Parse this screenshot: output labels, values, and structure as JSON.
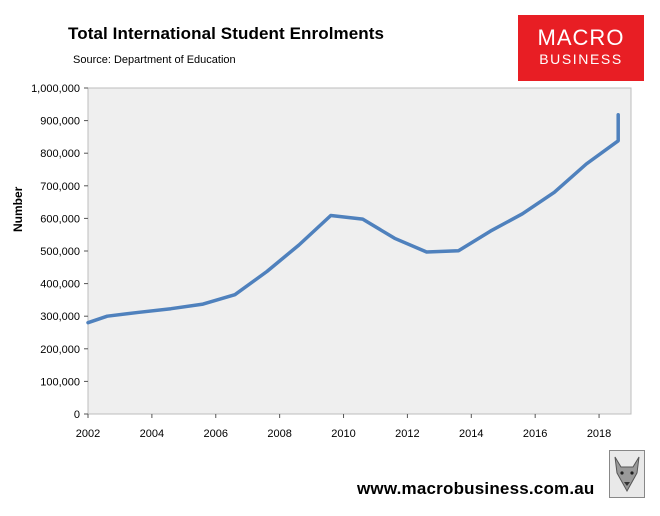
{
  "header": {
    "title": "Total International Student Enrolments",
    "subtitle": "Source: Department of Education"
  },
  "logo": {
    "top": "MACRO",
    "bottom": "BUSINESS",
    "bg_color": "#e81e24"
  },
  "footer": {
    "url": "www.macrobusiness.com.au",
    "badge_icon": "wolf-icon"
  },
  "chart_data": {
    "type": "line",
    "title": "Total International Student Enrolments",
    "subtitle": "Source: Department of Education",
    "xlabel": "",
    "ylabel": "Number",
    "x": [
      2002,
      2003,
      2004,
      2005,
      2006,
      2007,
      2008,
      2009,
      2010,
      2011,
      2012,
      2013,
      2014,
      2015,
      2016,
      2017,
      2018,
      2019
    ],
    "series": [
      {
        "values": [
          280000,
          300000,
          312000,
          323000,
          337000,
          366000,
          437000,
          518000,
          609000,
          598000,
          539000,
          497000,
          501000,
          561000,
          614000,
          680000,
          767000,
          838000,
          918000
        ],
        "x": [
          2002,
          2002.6,
          2003.6,
          2004.6,
          2005.6,
          2006.6,
          2007.6,
          2008.6,
          2009.6,
          2010.6,
          2011.6,
          2012.6,
          2013.6,
          2014.6,
          2015.6,
          2016.6,
          2017.6,
          2018.6,
          2018.6
        ],
        "color": "#4f81bd"
      }
    ],
    "xticks": [
      "2002",
      "2004",
      "2006",
      "2008",
      "2010",
      "2012",
      "2014",
      "2016",
      "2018"
    ],
    "yticks": [
      "0",
      "100,000",
      "200,000",
      "300,000",
      "400,000",
      "500,000",
      "600,000",
      "700,000",
      "800,000",
      "900,000",
      "1,000,000"
    ],
    "xlim": [
      2002,
      2019
    ],
    "ylim": [
      0,
      1000000
    ],
    "grid": false,
    "plot_bg": "#efefef"
  }
}
